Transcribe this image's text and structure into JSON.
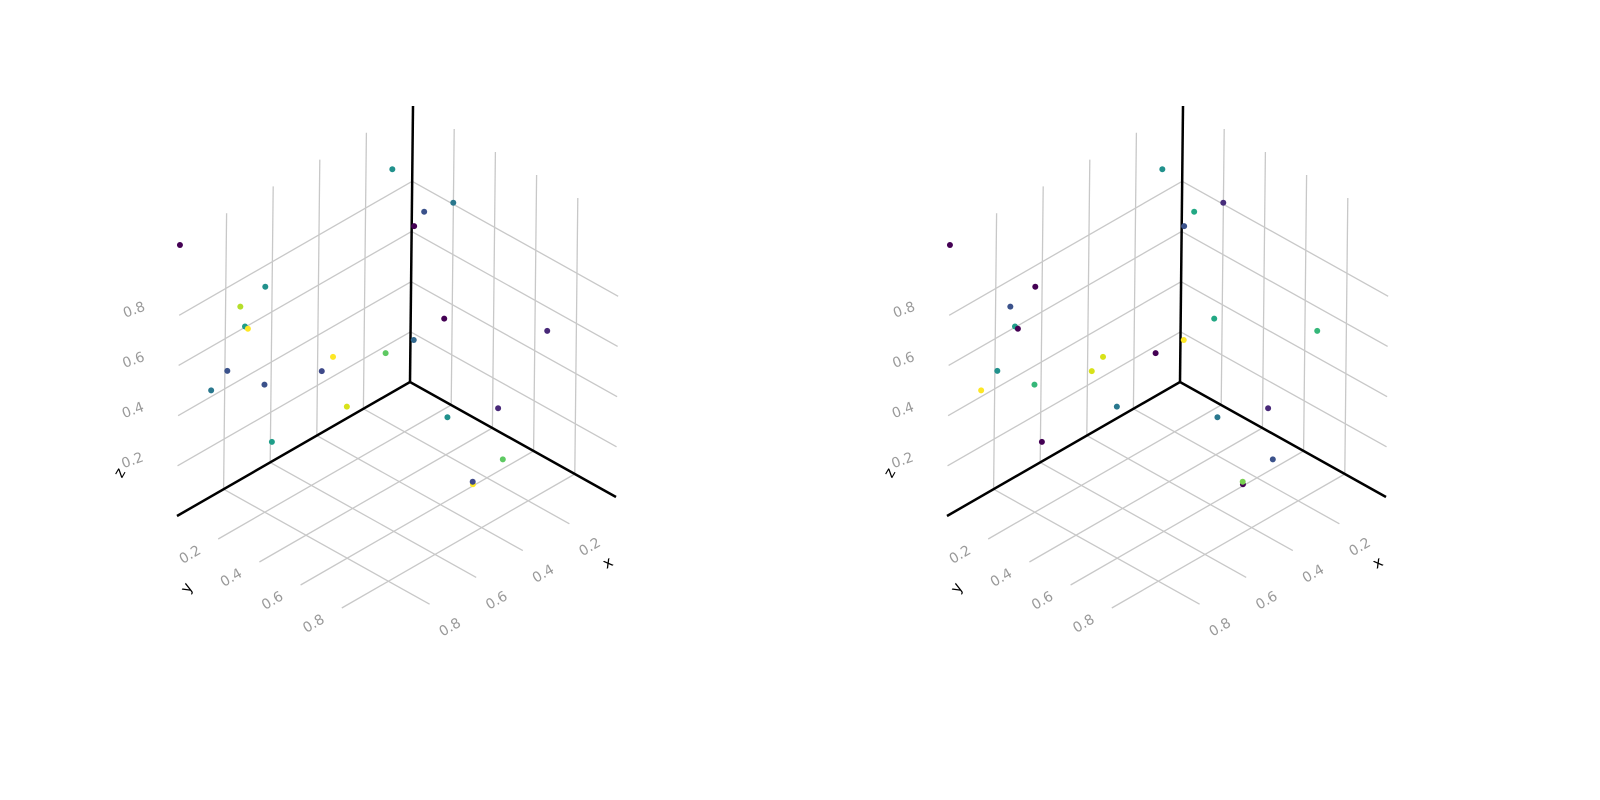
{
  "chart_data": [
    {
      "type": "scatter3d",
      "xlabel": "x",
      "ylabel": "y",
      "zlabel": "z",
      "xlim": [
        0,
        1
      ],
      "ylim": [
        0,
        1
      ],
      "zlim": [
        0,
        1.1
      ],
      "xticks": [
        0.2,
        0.4,
        0.6,
        0.8
      ],
      "yticks": [
        0.2,
        0.4,
        0.6,
        0.8
      ],
      "zticks": [
        0.2,
        0.4,
        0.6,
        0.8
      ],
      "x": [
        0.14,
        0.09,
        0.09,
        0.07,
        1.0,
        0.71,
        0.79,
        0.76,
        0.81,
        0.07,
        0.09,
        0.12,
        0.45,
        0.42,
        0.87,
        0.48,
        0.7,
        0.93,
        0.37,
        0.2,
        0.15,
        0.71,
        0.24,
        0.35,
        0.36
      ],
      "y": [
        0.06,
        0.16,
        0.3,
        0.09,
        0.0,
        0.09,
        0.06,
        0.05,
        0.12,
        0.24,
        0.76,
        0.15,
        0.13,
        0.35,
        0.09,
        0.11,
        0.08,
        0.08,
        0.11,
        0.65,
        0.35,
        0.13,
        0.72,
        0.7,
        0.71
      ],
      "z": [
        0.95,
        0.8,
        0.9,
        0.7,
        1.08,
        0.8,
        0.75,
        0.65,
        0.7,
        0.4,
        0.6,
        0.3,
        0.4,
        0.5,
        0.55,
        0.35,
        0.4,
        0.5,
        0.15,
        0.3,
        0.1,
        0.2,
        0.15,
        0.1,
        0.12
      ],
      "colors": [
        "#21918c",
        "#3b528b",
        "#2a788e",
        "#440154",
        "#440154",
        "#21918c",
        "#b5de2b",
        "#1f9e89",
        "#fde725",
        "#440154",
        "#482878",
        "#31688e",
        "#fde725",
        "#5ec962",
        "#3b528b",
        "#3e4989",
        "#3b528b",
        "#2a788e",
        "#d8e219",
        "#482878",
        "#21918c",
        "#1f9e89",
        "#5ec962",
        "#fde725",
        "#3e4989"
      ]
    },
    {
      "type": "scatter3d",
      "xlabel": "x",
      "ylabel": "y",
      "zlabel": "z",
      "xlim": [
        0,
        1
      ],
      "ylim": [
        0,
        1
      ],
      "zlim": [
        0,
        1.1
      ],
      "xticks": [
        0.2,
        0.4,
        0.6,
        0.8
      ],
      "yticks": [
        0.2,
        0.4,
        0.6,
        0.8
      ],
      "zticks": [
        0.2,
        0.4,
        0.6,
        0.8
      ],
      "x": [
        0.14,
        0.09,
        0.09,
        0.07,
        1.0,
        0.71,
        0.79,
        0.76,
        0.81,
        0.07,
        0.09,
        0.12,
        0.45,
        0.42,
        0.87,
        0.48,
        0.7,
        0.93,
        0.37,
        0.2,
        0.15,
        0.71,
        0.24,
        0.35,
        0.36
      ],
      "y": [
        0.06,
        0.16,
        0.3,
        0.09,
        0.0,
        0.09,
        0.06,
        0.05,
        0.12,
        0.24,
        0.76,
        0.15,
        0.13,
        0.35,
        0.09,
        0.11,
        0.08,
        0.08,
        0.11,
        0.65,
        0.35,
        0.13,
        0.72,
        0.7,
        0.71
      ],
      "z": [
        0.95,
        0.8,
        0.9,
        0.7,
        1.08,
        0.8,
        0.75,
        0.65,
        0.7,
        0.4,
        0.6,
        0.3,
        0.4,
        0.5,
        0.55,
        0.35,
        0.4,
        0.5,
        0.15,
        0.3,
        0.1,
        0.2,
        0.15,
        0.1,
        0.12
      ],
      "colors": [
        "#21918c",
        "#22a884",
        "#472d7b",
        "#3b528b",
        "#440154",
        "#440154",
        "#3b528b",
        "#1f9e89",
        "#440154",
        "#22a884",
        "#35b779",
        "#fde725",
        "#d8e219",
        "#440154",
        "#21918c",
        "#d8e219",
        "#35b779",
        "#fde725",
        "#2a788e",
        "#482878",
        "#2a788e",
        "#440154",
        "#3b528b",
        "#440154",
        "#7ad151"
      ]
    }
  ]
}
